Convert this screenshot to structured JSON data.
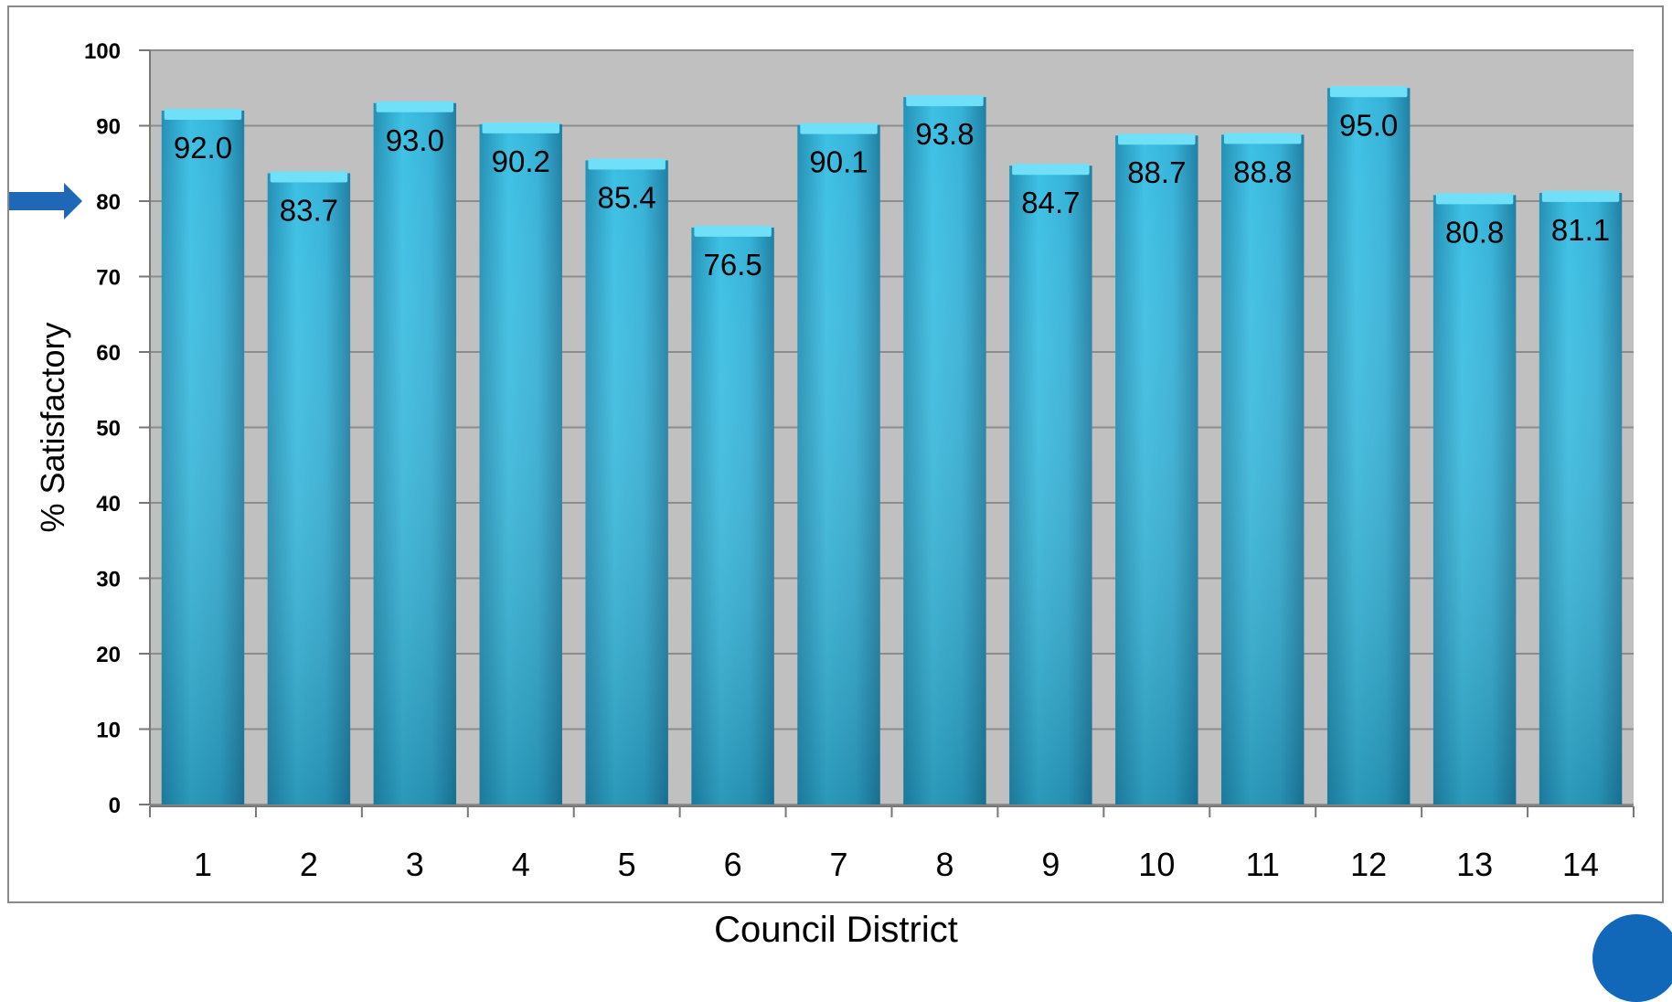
{
  "colors": {
    "plot_background": "#c0c0c0",
    "bar_fill": "#35b2d8",
    "bar_fill_dark": "#2a8fb0",
    "bar_top": "#6fe0f7",
    "gridline": "#8c8c8c",
    "benchmark_arrow": "#1f68b8",
    "page_badge": "#1167b8"
  },
  "benchmark_arrow": {
    "value": 80,
    "icon": "right-arrow-icon"
  },
  "chart_data": {
    "type": "bar",
    "title": "",
    "xlabel": "Council District",
    "ylabel": "% Satisfactory",
    "categories": [
      "1",
      "2",
      "3",
      "4",
      "5",
      "6",
      "7",
      "8",
      "9",
      "10",
      "11",
      "12",
      "13",
      "14"
    ],
    "values": [
      92.0,
      83.7,
      93.0,
      90.2,
      85.4,
      76.5,
      90.1,
      93.8,
      84.7,
      88.7,
      88.8,
      95.0,
      80.8,
      81.1
    ],
    "data_labels": [
      "92.0",
      "83.7",
      "93.0",
      "90.2",
      "85.4",
      "76.5",
      "90.1",
      "93.8",
      "84.7",
      "88.7",
      "88.8",
      "95.0",
      "80.8",
      "81.1"
    ],
    "ylim": [
      0,
      100
    ],
    "yticks": [
      "0",
      "10",
      "20",
      "30",
      "40",
      "50",
      "60",
      "70",
      "80",
      "90",
      "100"
    ],
    "grid": true,
    "legend": "none"
  }
}
